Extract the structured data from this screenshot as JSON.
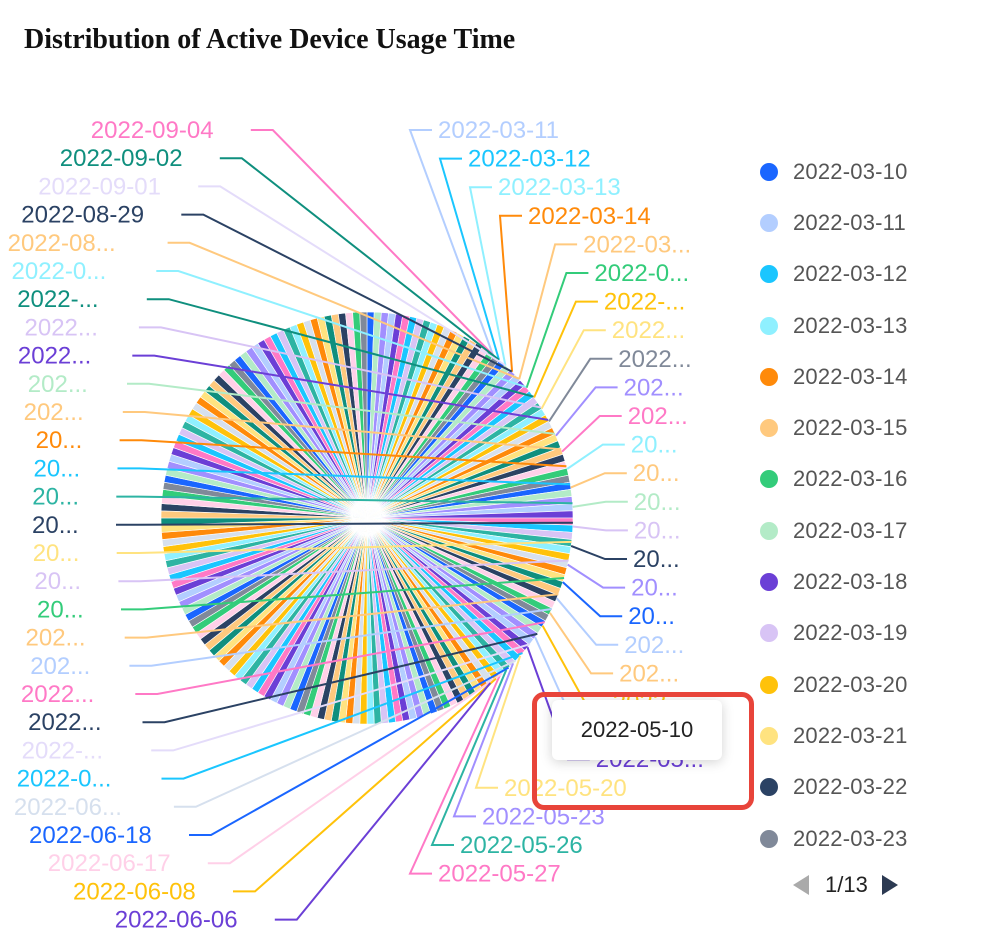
{
  "chart_data": {
    "type": "pie",
    "title": "Distribution of Active Device Usage Time",
    "palette": [
      "#1a66ff",
      "#b3ceff",
      "#1ac6ff",
      "#8ff0ff",
      "#ff8a0a",
      "#ffc97e",
      "#33cc7a",
      "#b3ebc7",
      "#6b3fd6",
      "#d8c4f5",
      "#ffc20a",
      "#ffe380",
      "#2b4264",
      "#808999",
      "#a18fff",
      "#ff79c6",
      "#2db4a3",
      "#d6e0ee",
      "#0f8f7e",
      "#ffd0e8"
    ],
    "categories": [
      "2022-03-10",
      "2022-03-11",
      "2022-03-12",
      "2022-03-13",
      "2022-03-14",
      "2022-03-15",
      "2022-03-16",
      "2022-03-17",
      "2022-03-18",
      "2022-03-19",
      "2022-03-20",
      "2022-03-21",
      "2022-03-22",
      "2022-03-23"
    ],
    "legend_visible": [
      "2022-03-10",
      "2022-03-11",
      "2022-03-12",
      "2022-03-13",
      "2022-03-14",
      "2022-03-15",
      "2022-03-16",
      "2022-03-17",
      "2022-03-18",
      "2022-03-19",
      "2022-03-20",
      "2022-03-21",
      "2022-03-22",
      "2022-03-23"
    ],
    "legend_page": "1/13",
    "legend_position": "right",
    "visible_labels": [
      {
        "text": "2022-03-11",
        "color": "#b3ceff",
        "side": "right",
        "row": 0
      },
      {
        "text": "2022-03-12",
        "color": "#1ac6ff",
        "side": "right",
        "row": 1
      },
      {
        "text": "2022-03-13",
        "color": "#8ff0ff",
        "side": "right",
        "row": 2
      },
      {
        "text": "2022-03-14",
        "color": "#ff8a0a",
        "side": "right",
        "row": 3
      },
      {
        "text": "2022-03...",
        "color": "#ffc97e",
        "side": "right",
        "row": 4
      },
      {
        "text": "2022-0...",
        "color": "#33cc7a",
        "side": "right",
        "row": 5
      },
      {
        "text": "2022-...",
        "color": "#ffc20a",
        "side": "right",
        "row": 6
      },
      {
        "text": "2022...",
        "color": "#ffe380",
        "side": "right",
        "row": 7
      },
      {
        "text": "2022...",
        "color": "#808999",
        "side": "right",
        "row": 8
      },
      {
        "text": "202...",
        "color": "#a18fff",
        "side": "right",
        "row": 9
      },
      {
        "text": "202...",
        "color": "#ff79c6",
        "side": "right",
        "row": 10
      },
      {
        "text": "20...",
        "color": "#8ff0ff",
        "side": "right",
        "row": 11
      },
      {
        "text": "20...",
        "color": "#ffc97e",
        "side": "right",
        "row": 12
      },
      {
        "text": "20...",
        "color": "#b3ebc7",
        "side": "right",
        "row": 13
      },
      {
        "text": "20...",
        "color": "#d8c4f5",
        "side": "right",
        "row": 14
      },
      {
        "text": "20...",
        "color": "#2b4264",
        "side": "right",
        "row": 15
      },
      {
        "text": "20...",
        "color": "#a18fff",
        "side": "right",
        "row": 16
      },
      {
        "text": "20...",
        "color": "#1a66ff",
        "side": "right",
        "row": 17
      },
      {
        "text": "202...",
        "color": "#b3ceff",
        "side": "right",
        "row": 18
      },
      {
        "text": "202...",
        "color": "#ffc97e",
        "side": "right",
        "row": 19
      },
      {
        "text": "2022...",
        "color": "#ffc20a",
        "side": "right",
        "row": 20
      },
      {
        "text": "2022-0...",
        "color": "#b3ceff",
        "side": "right",
        "row": 21
      },
      {
        "text": "2022-05...",
        "color": "#6b3fd6",
        "side": "right",
        "row": 22
      },
      {
        "text": "2022-05-20",
        "color": "#ffe380",
        "side": "right",
        "row": 23
      },
      {
        "text": "2022-05-23",
        "color": "#a18fff",
        "side": "right",
        "row": 24
      },
      {
        "text": "2022-05-26",
        "color": "#2db4a3",
        "side": "right",
        "row": 25
      },
      {
        "text": "2022-05-27",
        "color": "#ff79c6",
        "side": "right",
        "row": 26
      },
      {
        "text": "2022-09-04",
        "color": "#ff79c6",
        "side": "left",
        "row": 0
      },
      {
        "text": "2022-09-02",
        "color": "#0f8f7e",
        "side": "left",
        "row": 1
      },
      {
        "text": "2022-09-01",
        "color": "#e4dcfa",
        "side": "left",
        "row": 2
      },
      {
        "text": "2022-08-29",
        "color": "#2b4264",
        "side": "left",
        "row": 3
      },
      {
        "text": "2022-08...",
        "color": "#ffc97e",
        "side": "left",
        "row": 4
      },
      {
        "text": "2022-0...",
        "color": "#8ff0ff",
        "side": "left",
        "row": 5
      },
      {
        "text": "2022-...",
        "color": "#0f8f7e",
        "side": "left",
        "row": 6
      },
      {
        "text": "2022...",
        "color": "#d8c4f5",
        "side": "left",
        "row": 7
      },
      {
        "text": "2022...",
        "color": "#6b3fd6",
        "side": "left",
        "row": 8
      },
      {
        "text": "202...",
        "color": "#b3ebc7",
        "side": "left",
        "row": 9
      },
      {
        "text": "202...",
        "color": "#ffc97e",
        "side": "left",
        "row": 10
      },
      {
        "text": "20...",
        "color": "#ff8a0a",
        "side": "left",
        "row": 11
      },
      {
        "text": "20...",
        "color": "#1ac6ff",
        "side": "left",
        "row": 12
      },
      {
        "text": "20...",
        "color": "#2db4a3",
        "side": "left",
        "row": 13
      },
      {
        "text": "20...",
        "color": "#2b4264",
        "side": "left",
        "row": 14
      },
      {
        "text": "20...",
        "color": "#ffe380",
        "side": "left",
        "row": 15
      },
      {
        "text": "20...",
        "color": "#d8c4f5",
        "side": "left",
        "row": 16
      },
      {
        "text": "20...",
        "color": "#33cc7a",
        "side": "left",
        "row": 17
      },
      {
        "text": "202...",
        "color": "#ffc97e",
        "side": "left",
        "row": 18
      },
      {
        "text": "202...",
        "color": "#b3ceff",
        "side": "left",
        "row": 19
      },
      {
        "text": "2022...",
        "color": "#ff79c6",
        "side": "left",
        "row": 20
      },
      {
        "text": "2022...",
        "color": "#2b4264",
        "side": "left",
        "row": 21
      },
      {
        "text": "2022-...",
        "color": "#e4dcfa",
        "side": "left",
        "row": 22
      },
      {
        "text": "2022-0...",
        "color": "#1ac6ff",
        "side": "left",
        "row": 23
      },
      {
        "text": "2022-06...",
        "color": "#d6e0ee",
        "side": "left",
        "row": 24
      },
      {
        "text": "2022-06-18",
        "color": "#1a66ff",
        "side": "left",
        "row": 25
      },
      {
        "text": "2022-06-17",
        "color": "#ffd0e8",
        "side": "left",
        "row": 26
      },
      {
        "text": "2022-06-08",
        "color": "#ffc20a",
        "side": "left",
        "row": 27
      },
      {
        "text": "2022-06-06",
        "color": "#6b3fd6",
        "side": "left",
        "row": 28
      }
    ],
    "tooltip": "2022-05-10"
  }
}
